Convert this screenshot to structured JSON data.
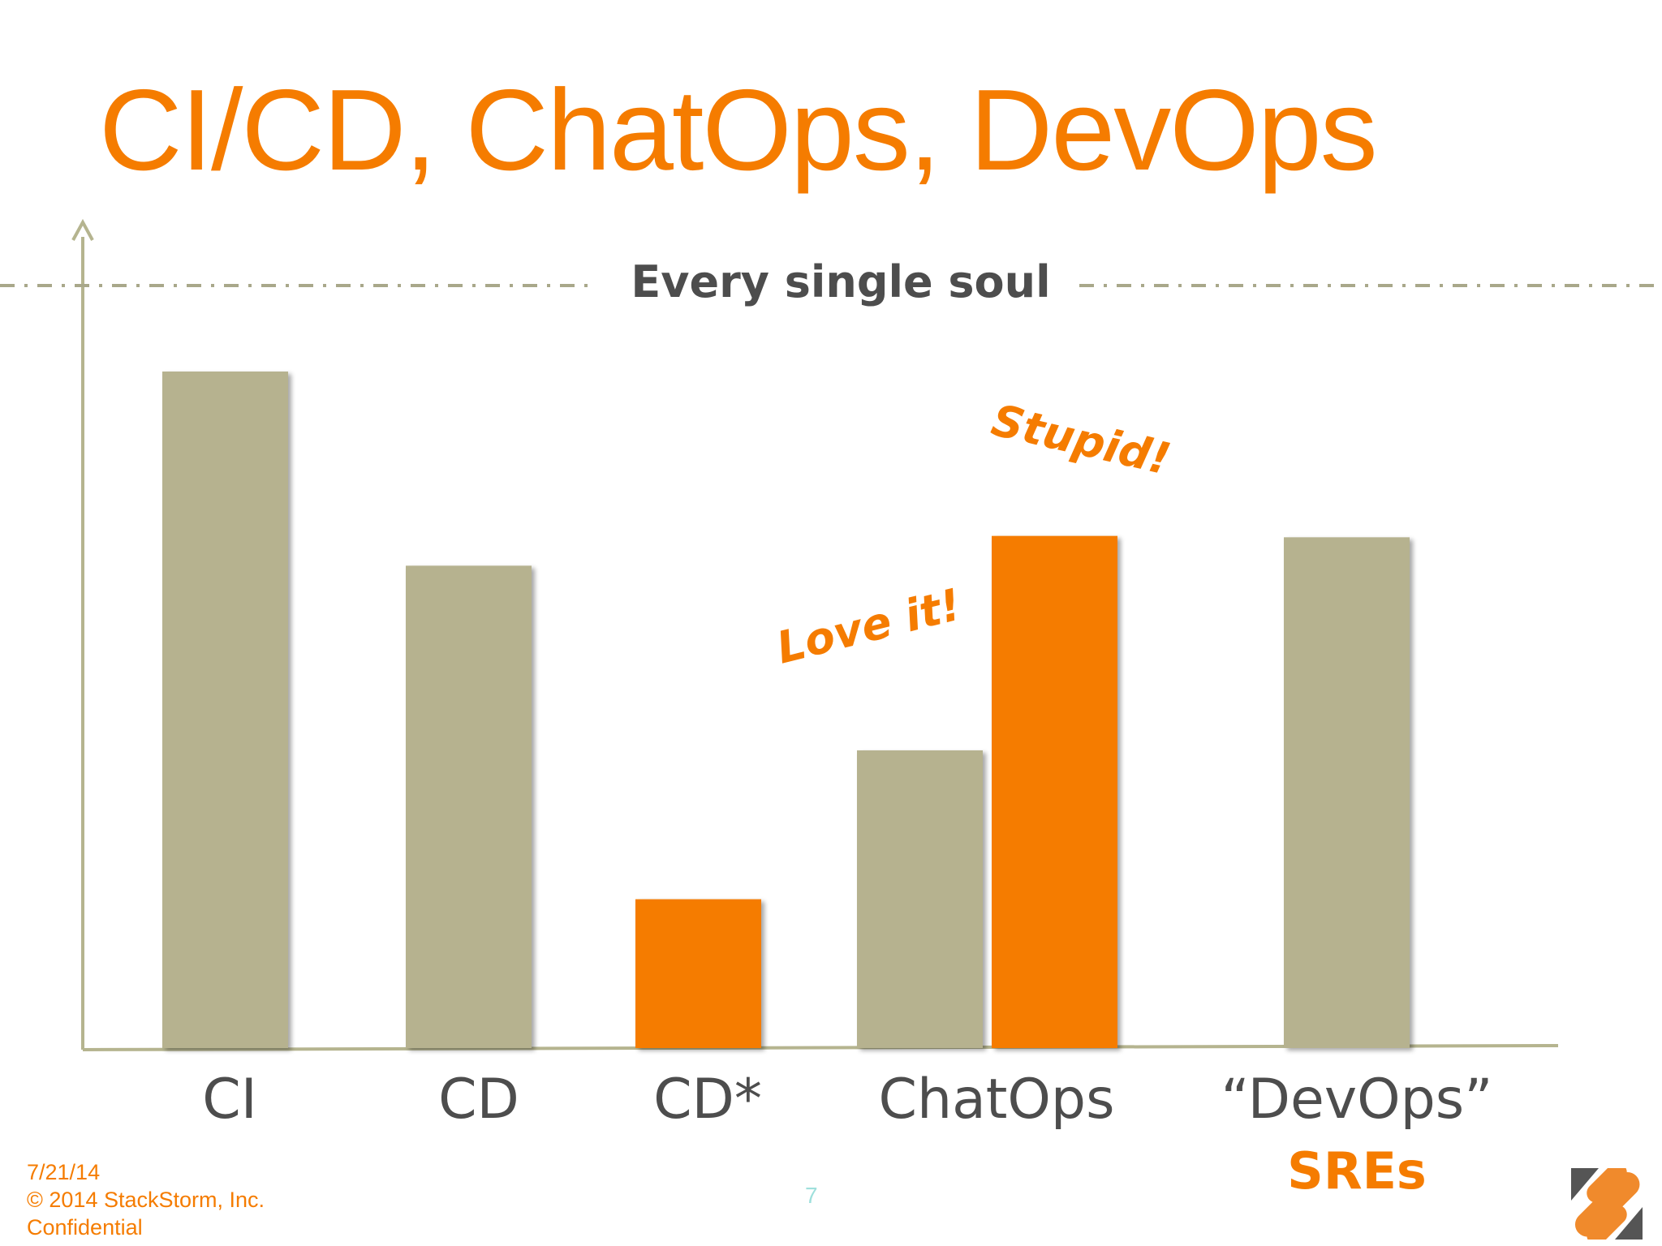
{
  "slide": {
    "title": "CI/CD, ChatOps, DevOps",
    "footer": {
      "date": "7/21/14",
      "copyright": "© 2014 StackStorm, Inc.",
      "confidential": "Confidential"
    },
    "page_number": "7"
  },
  "chart_data": {
    "type": "bar",
    "title": "",
    "xlabel": "",
    "ylabel": "",
    "ylim": [
      0,
      100
    ],
    "grid": false,
    "legend": "none",
    "colors": {
      "gray": "#b6b28f",
      "orange": "#f57c00",
      "axis": "#b5b48f",
      "text": "#4d4d4d"
    },
    "reference_line": {
      "label": "Every single soul",
      "value": 112
    },
    "categories": [
      {
        "label": "CI",
        "sublabel": ""
      },
      {
        "label": "CD",
        "sublabel": ""
      },
      {
        "label": "CD*",
        "sublabel": ""
      },
      {
        "label": "ChatOps",
        "sublabel": ""
      },
      {
        "label": "“DevOps”",
        "sublabel": "SREs"
      }
    ],
    "bars": [
      {
        "category": 0,
        "value": 100,
        "color": "gray"
      },
      {
        "category": 1,
        "value": 71.3,
        "color": "gray"
      },
      {
        "category": 2,
        "value": 22,
        "color": "orange"
      },
      {
        "category": 3,
        "value": 44,
        "color": "gray"
      },
      {
        "category": 3,
        "value": 75.7,
        "color": "orange"
      },
      {
        "category": 4,
        "value": 75.5,
        "color": "gray"
      }
    ],
    "annotations": [
      {
        "text": "Love it!",
        "color": "orange",
        "rotation": -14
      },
      {
        "text": "Stupid!",
        "color": "orange",
        "rotation": 13
      }
    ]
  }
}
